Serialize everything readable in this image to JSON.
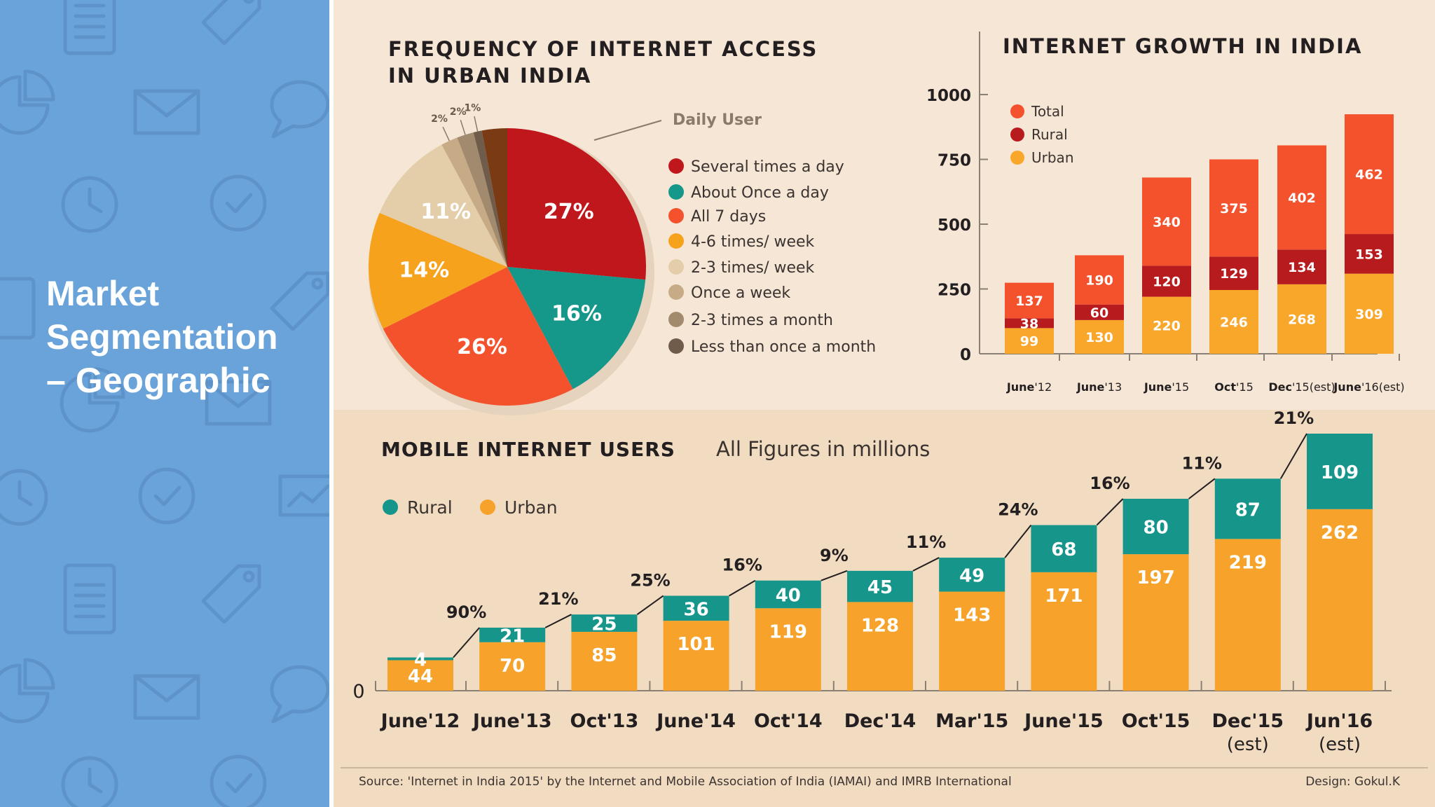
{
  "sidebar": {
    "title_lines": [
      "Market",
      "Segmentation",
      "– Geographic"
    ],
    "background_color": "#6aa3da",
    "decorative_icons": [
      "document-icon",
      "tag-icon",
      "pie-chart-icon",
      "envelope-icon",
      "speech-bubble-icon",
      "clock-icon",
      "checkmark-icon",
      "tablet-icon",
      "presentation-chart-icon"
    ]
  },
  "colors": {
    "dark_red": "#c0171d",
    "teal": "#15978a",
    "red_orange": "#f4522d",
    "orange": "#f7a21d",
    "beige": "#e4ceaa",
    "tan": "#c7ab86",
    "brown": "#a28a6e",
    "dark_brown": "#705c4a",
    "total": "#f4522d",
    "rural": "#b81b1e",
    "urban": "#f9a72b",
    "mobile_rural": "#16958a",
    "mobile_urban": "#f7a32b"
  },
  "chart_data": [
    {
      "type": "pie",
      "title": "FREQUENCY OF INTERNET ACCESS IN URBAN INDIA",
      "title_lines": [
        "FREQUENCY OF INTERNET ACCESS",
        "IN URBAN INDIA"
      ],
      "annotation": "Daily User",
      "slices": [
        {
          "label": "Several times a day",
          "value": 27,
          "value_label": "27%",
          "color": "#c0171d"
        },
        {
          "label": "About Once a day",
          "value": 16,
          "value_label": "16%",
          "color": "#15978a"
        },
        {
          "label": "All 7 days",
          "value": 26,
          "value_label": "26%",
          "color": "#f4522d"
        },
        {
          "label": "4-6 times/ week",
          "value": 14,
          "value_label": "14%",
          "color": "#f7a21d"
        },
        {
          "label": "2-3 times/ week",
          "value": 11,
          "value_label": "11%",
          "color": "#e4ceaa"
        },
        {
          "label": "Once a week",
          "value": 2,
          "value_label": "2%",
          "color": "#c7ab86"
        },
        {
          "label": "2-3 times a month",
          "value": 2,
          "value_label": "2%",
          "color": "#a28a6e"
        },
        {
          "label": "Less than once a month",
          "value": 1,
          "value_label": "1%",
          "color": "#705c4a"
        }
      ],
      "unlabeled_remainder": {
        "value": 3,
        "color": "#7a3b14"
      }
    },
    {
      "type": "bar",
      "title": "INTERNET GROWTH IN INDIA",
      "categories": [
        {
          "main": "June",
          "sub": "'12"
        },
        {
          "main": "June",
          "sub": "'13"
        },
        {
          "main": "June",
          "sub": "'15"
        },
        {
          "main": "Oct",
          "sub": "'15"
        },
        {
          "main": "Dec",
          "sub": "'15(est)"
        },
        {
          "main": "June",
          "sub": "'16(est)"
        }
      ],
      "series": [
        {
          "name": "Total",
          "values": [
            137,
            190,
            340,
            375,
            402,
            462
          ],
          "color": "#f4522d"
        },
        {
          "name": "Rural",
          "values": [
            38,
            60,
            120,
            129,
            134,
            153
          ],
          "color": "#b81b1e"
        },
        {
          "name": "Urban",
          "values": [
            99,
            130,
            220,
            246,
            268,
            309
          ],
          "color": "#f9a72b"
        }
      ],
      "yticks": [
        0,
        250,
        500,
        750,
        1000
      ],
      "ylim": [
        0,
        1000
      ],
      "legend": "top-left"
    },
    {
      "type": "bar",
      "title": "MOBILE INTERNET USERS",
      "subtitle": "All Figures in millions",
      "categories": [
        "June'12",
        "June'13",
        "Oct'13",
        "June'14",
        "Oct'14",
        "Dec'14",
        "Mar'15",
        "June'15",
        "Oct'15",
        "Dec'15|(est)",
        "Jun'16|(est)"
      ],
      "series": [
        {
          "name": "Rural",
          "values": [
            4,
            21,
            25,
            36,
            40,
            45,
            49,
            68,
            80,
            87,
            109
          ],
          "color": "#16958a"
        },
        {
          "name": "Urban",
          "values": [
            44,
            70,
            85,
            101,
            119,
            128,
            143,
            171,
            197,
            219,
            262
          ],
          "color": "#f7a32b"
        }
      ],
      "growth_labels": [
        "90%",
        "21%",
        "25%",
        "16%",
        "9%",
        "11%",
        "24%",
        "16%",
        "11%",
        "21%"
      ],
      "yticks": [
        0
      ],
      "ylim": [
        0,
        371
      ],
      "legend": "top-left"
    }
  ],
  "footer": {
    "source": "Source: 'Internet in India 2015' by the Internet and Mobile Association of India (IAMAI) and IMRB International",
    "design": "Design: Gokul.K"
  }
}
